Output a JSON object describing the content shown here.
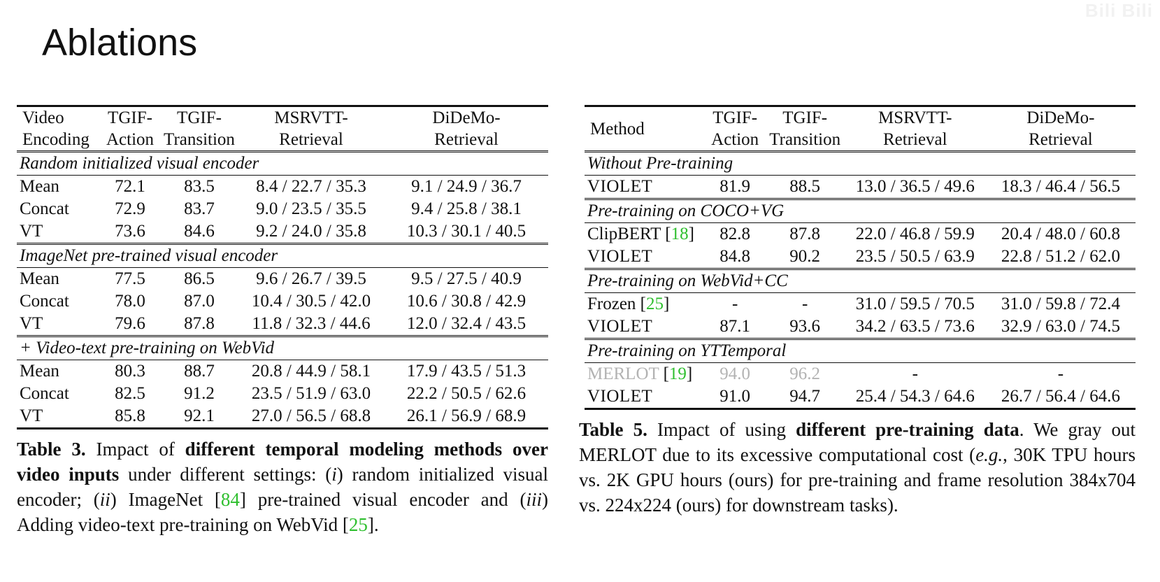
{
  "slide": {
    "title": "Ablations",
    "watermark": "Bili Bili"
  },
  "table3": {
    "header": {
      "c0": [
        "Video",
        "Encoding"
      ],
      "c1": [
        "TGIF-",
        "Action"
      ],
      "c2": [
        "TGIF-",
        "Transition"
      ],
      "c3": [
        "MSRVTT-",
        "Retrieval"
      ],
      "c4": [
        "DiDeMo-",
        "Retrieval"
      ]
    },
    "groups": [
      {
        "title": "Random initialized visual encoder",
        "rows": [
          [
            "Mean",
            "72.1",
            "83.5",
            "8.4 / 22.7 / 35.3",
            "9.1 / 24.9 / 36.7"
          ],
          [
            "Concat",
            "72.9",
            "83.7",
            "9.0 / 23.5 / 35.5",
            "9.4 / 25.8 / 38.1"
          ],
          [
            "VT",
            "73.6",
            "84.6",
            "9.2 / 24.0 / 35.8",
            "10.3 / 30.1 / 40.5"
          ]
        ]
      },
      {
        "title": "ImageNet pre-trained visual encoder",
        "rows": [
          [
            "Mean",
            "77.5",
            "86.5",
            "9.6 / 26.7 / 39.5",
            "9.5 / 27.5 / 40.9"
          ],
          [
            "Concat",
            "78.0",
            "87.0",
            "10.4 / 30.5 / 42.0",
            "10.6 / 30.8 / 42.9"
          ],
          [
            "VT",
            "79.6",
            "87.8",
            "11.8 / 32.3 / 44.6",
            "12.0 / 32.4 / 43.5"
          ]
        ]
      },
      {
        "title": "+ Video-text pre-training on WebVid",
        "rows": [
          [
            "Mean",
            "80.3",
            "88.7",
            "20.8 / 44.9 / 58.1",
            "17.9 / 43.5 / 51.3"
          ],
          [
            "Concat",
            "82.5",
            "91.2",
            "23.5 / 51.9 / 63.0",
            "22.2 / 50.5 / 62.6"
          ],
          [
            "VT",
            "85.8",
            "92.1",
            "27.0 / 56.5 / 68.8",
            "26.1 / 56.9 / 68.9"
          ]
        ]
      }
    ],
    "caption": {
      "label": "Table 3.",
      "t1": "Impact of",
      "bold": "different temporal modeling methods over video inputs",
      "t2": "under different settings: (",
      "i": "i",
      "t3": ") random initialized visual encoder; (",
      "ii": "ii",
      "t4": ") ImageNet [",
      "ref84": "84",
      "t5": "] pre-trained visual encoder and (",
      "iii": "iii",
      "t6": ") Adding video-text pre-training on WebVid [",
      "ref25": "25",
      "t7": "]."
    }
  },
  "table5": {
    "header": {
      "c0": "Method",
      "c1": [
        "TGIF-",
        "Action"
      ],
      "c2": [
        "TGIF-",
        "Transition"
      ],
      "c3": [
        "MSRVTT-",
        "Retrieval"
      ],
      "c4": [
        "DiDeMo-",
        "Retrieval"
      ]
    },
    "groups": [
      {
        "title": "Without Pre-training",
        "rows": [
          {
            "name": "VIOLET",
            "ref": "",
            "v": [
              "81.9",
              "88.5",
              "13.0 / 36.5 / 49.6",
              "18.3 / 46.4 / 56.5"
            ]
          }
        ]
      },
      {
        "title": "Pre-training on COCO+VG",
        "rows": [
          {
            "name": "ClipBERT",
            "ref": "18",
            "v": [
              "82.8",
              "87.8",
              "22.0 / 46.8 / 59.9",
              "20.4 / 48.0 / 60.8"
            ]
          },
          {
            "name": "VIOLET",
            "ref": "",
            "v": [
              "84.8",
              "90.2",
              "23.5 / 50.5 / 63.9",
              "22.8 / 51.2 / 62.0"
            ]
          }
        ]
      },
      {
        "title": "Pre-training on WebVid+CC",
        "rows": [
          {
            "name": "Frozen",
            "ref": "25",
            "v": [
              "-",
              "-",
              "31.0 / 59.5 / 70.5",
              "31.0 / 59.8 / 72.4"
            ]
          },
          {
            "name": "VIOLET",
            "ref": "",
            "v": [
              "87.1",
              "93.6",
              "34.2 / 63.5 / 73.6",
              "32.9 / 63.0 / 74.5"
            ]
          }
        ]
      },
      {
        "title": "Pre-training on YTTemporal",
        "rows": [
          {
            "name": "MERLOT",
            "ref": "19",
            "v": [
              "94.0",
              "96.2",
              "-",
              "-"
            ]
          },
          {
            "name": "VIOLET",
            "ref": "",
            "v": [
              "91.0",
              "94.7",
              "25.4 / 54.3 / 64.6",
              "26.7 / 56.4 / 64.6"
            ]
          }
        ]
      }
    ],
    "caption": {
      "label": "Table 5.",
      "t1": "Impact of using",
      "bold": "different pre-training data",
      "t2": ". We gray out MERLOT due to its excessive computational cost (",
      "eg": "e.g.",
      "t3": ", 30K TPU hours vs. 2K GPU hours (ours) for pre-training and frame resolution 384x704 vs. 224x224 (ours) for downstream tasks)."
    }
  }
}
